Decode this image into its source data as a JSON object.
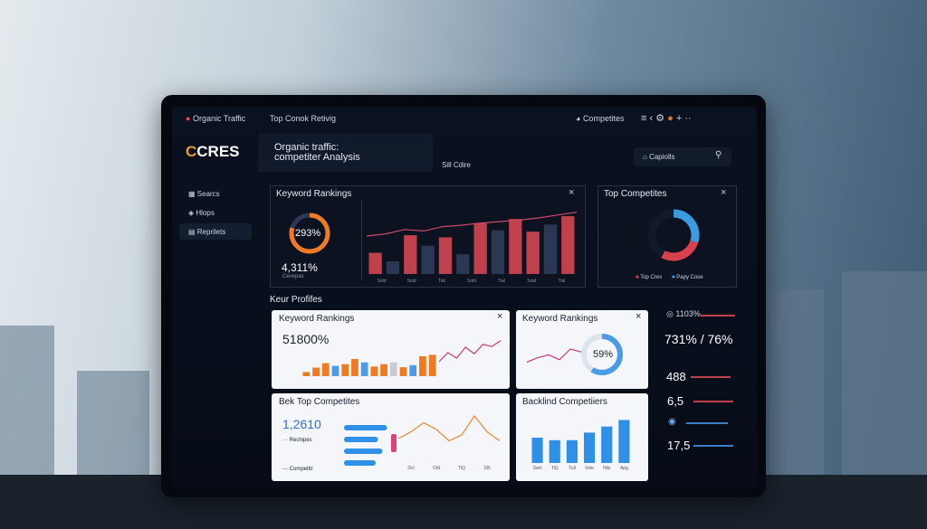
{
  "topbar": {
    "left": "Organic Traffic",
    "center": "Top Conok Retivig",
    "right": "Competites"
  },
  "logo": "CRES",
  "header": {
    "title": "Organic traffic:",
    "subtitle": "competiter Analysis",
    "note": "Sill Cdire",
    "search": "Capiolls"
  },
  "sidebar": [
    "Searcs",
    "Hlops",
    "Reprilets"
  ],
  "rankings_panel": {
    "title": "Keyword Rankings",
    "donut_label": "293%",
    "metric": "4,311%",
    "metric_label": "Cevepas",
    "bars": [
      30,
      18,
      55,
      40,
      52,
      28,
      72,
      62,
      78,
      60,
      70,
      82
    ],
    "bar_colors": [
      "#c0404c",
      "#2b3854",
      "#c0404c",
      "#2b3854",
      "#c0404c",
      "#2b3854",
      "#c0404c",
      "#2b3854",
      "#c0404c",
      "#c0404c",
      "#2b3854",
      "#c0404c"
    ],
    "line": [
      55,
      58,
      64,
      62,
      68,
      70,
      73,
      75,
      77,
      80,
      84,
      88
    ],
    "line_color": "#c94a68",
    "x_labels": [
      "Sold",
      "Sold",
      "Tial",
      "Sold",
      "Tial",
      "Sold",
      "Tial"
    ]
  },
  "competitors_panel": {
    "title": "Top Competites",
    "legend": [
      "Top Cres",
      "Papy Cose"
    ],
    "segments": [
      30,
      28,
      42
    ],
    "segment_colors": [
      "#3a9be0",
      "#d8404e",
      "#111a2a"
    ]
  },
  "section_title": "Keur Profifes",
  "cards": [
    {
      "title": "Keyword Rankings",
      "value": "51800%",
      "bars": [
        12,
        25,
        38,
        30,
        35,
        50,
        40,
        28,
        35,
        40,
        26,
        32,
        58,
        62
      ],
      "bar_colors": [
        "#f07a22",
        "#f07a22",
        "#f07a22",
        "#4a9be8",
        "#f07a22",
        "#f07a22",
        "#4a9be8",
        "#f07a22",
        "#f07a22",
        "#c9ccd4",
        "#f07a22",
        "#4a9be8",
        "#f07a22",
        "#f07a22"
      ],
      "line": [
        30,
        55,
        40,
        70,
        52,
        78,
        72,
        88
      ],
      "line_color": "#c83a7a"
    },
    {
      "title": "Keyword Rankings",
      "value": 59,
      "value_label": "59%",
      "line": [
        30,
        45,
        55,
        38,
        75,
        65
      ],
      "line_color": "#c83a7a",
      "ring_color": "#4a9be8"
    },
    {
      "title": "Bek Top Competites",
      "value": "1,2610",
      "labels": [
        "Rechipes",
        "Competitr"
      ],
      "hbars": [
        95,
        75,
        85,
        70
      ],
      "hbar_color": "#2f90e8",
      "accent": 20,
      "accent_color": "#e0407a",
      "line": [
        40,
        55,
        75,
        60,
        35,
        48,
        90,
        55,
        35
      ],
      "line_color": "#f08a30",
      "x_labels": [
        "Dcl",
        "Cfd",
        "TiQ",
        "Sl5"
      ]
    },
    {
      "title": "Backlind Competiiers",
      "bars": [
        50,
        45,
        45,
        60,
        72,
        85
      ],
      "bar_colors": [
        "#2f90e8",
        "#2f90e8",
        "#2f90e8",
        "#2f90e8",
        "#2f90e8",
        "#2f90e8"
      ],
      "x_labels": [
        "Sanl",
        "TiQ",
        "Tuil",
        "Vole",
        "Nlis",
        "Apg"
      ]
    }
  ],
  "stats": [
    "1103%",
    "731% / 76%",
    "488",
    "6,5",
    "17,5"
  ]
}
